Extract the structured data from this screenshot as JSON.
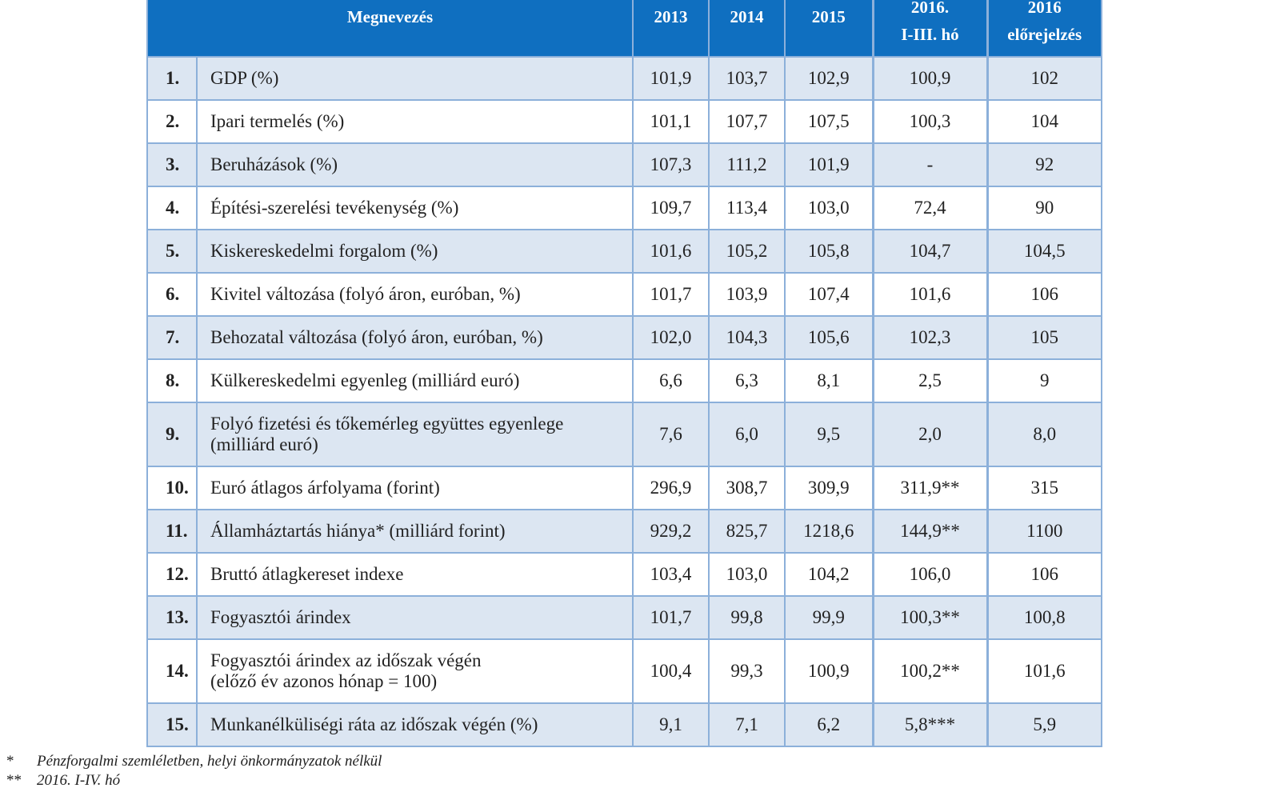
{
  "header": {
    "name": "Megnevezés",
    "y2013": "2013",
    "y2014": "2014",
    "y2015": "2015",
    "y2016_top": "2016.",
    "y2016_bottom": "I-III. hó",
    "fc_top": "2016",
    "fc_bottom": "előrejelzés"
  },
  "rows": [
    {
      "num": "1.",
      "name": "GDP (%)",
      "v": [
        "101,9",
        "103,7",
        "102,9",
        "100,9",
        "102"
      ]
    },
    {
      "num": "2.",
      "name": "Ipari termelés (%)",
      "v": [
        "101,1",
        "107,7",
        "107,5",
        "100,3",
        "104"
      ]
    },
    {
      "num": "3.",
      "name": "Beruházások (%)",
      "v": [
        "107,3",
        "111,2",
        "101,9",
        "-",
        "92"
      ]
    },
    {
      "num": "4.",
      "name": "Építési-szerelési tevékenység (%)",
      "v": [
        "109,7",
        "113,4",
        "103,0",
        "72,4",
        "90"
      ]
    },
    {
      "num": "5.",
      "name": "Kiskereskedelmi forgalom (%)",
      "v": [
        "101,6",
        "105,2",
        "105,8",
        "104,7",
        "104,5"
      ]
    },
    {
      "num": "6.",
      "name": "Kivitel változása (folyó áron, euróban, %)",
      "v": [
        "101,7",
        "103,9",
        "107,4",
        "101,6",
        "106"
      ]
    },
    {
      "num": "7.",
      "name": "Behozatal változása (folyó áron, euróban, %)",
      "v": [
        "102,0",
        "104,3",
        "105,6",
        "102,3",
        "105"
      ]
    },
    {
      "num": "8.",
      "name": "Külkereskedelmi egyenleg (milliárd euró)",
      "v": [
        "6,6",
        "6,3",
        "8,1",
        "2,5",
        "9"
      ]
    },
    {
      "num": "9.",
      "name": "Folyó fizetési és tőkemérleg együttes egyenlege",
      "name2": "(milliárd euró)",
      "v": [
        "7,6",
        "6,0",
        "9,5",
        "2,0",
        "8,0"
      ]
    },
    {
      "num": "10.",
      "name": "Euró átlagos árfolyama (forint)",
      "v": [
        "296,9",
        "308,7",
        "309,9",
        "311,9**",
        "315"
      ]
    },
    {
      "num": "11.",
      "name": "Államháztartás hiánya* (milliárd forint)",
      "v": [
        "929,2",
        "825,7",
        "1218,6",
        "144,9**",
        "1100"
      ]
    },
    {
      "num": "12.",
      "name": "Bruttó átlagkereset indexe",
      "v": [
        "103,4",
        "103,0",
        "104,2",
        "106,0",
        "106"
      ]
    },
    {
      "num": "13.",
      "name": "Fogyasztói árindex",
      "v": [
        "101,7",
        "99,8",
        "99,9",
        "100,3**",
        "100,8"
      ]
    },
    {
      "num": "14.",
      "name": "Fogyasztói árindex az időszak végén",
      "name2": "(előző év azonos hónap = 100)",
      "v": [
        "100,4",
        "99,3",
        "100,9",
        "100,2**",
        "101,6"
      ]
    },
    {
      "num": "15.",
      "name": "Munkanélküliségi ráta az időszak végén (%)",
      "v": [
        "9,1",
        "7,1",
        "6,2",
        "5,8***",
        "5,9"
      ]
    }
  ],
  "notes": [
    {
      "mark": "*",
      "text": "Pénzforgalmi szemléletben, helyi önkormányzatok nélkül"
    },
    {
      "mark": "**",
      "text": "2016. I-IV. hó"
    }
  ],
  "colors": {
    "header_bg": "#0f6fc0",
    "stripe": "#dce6f2",
    "border": "#8cb0da"
  }
}
